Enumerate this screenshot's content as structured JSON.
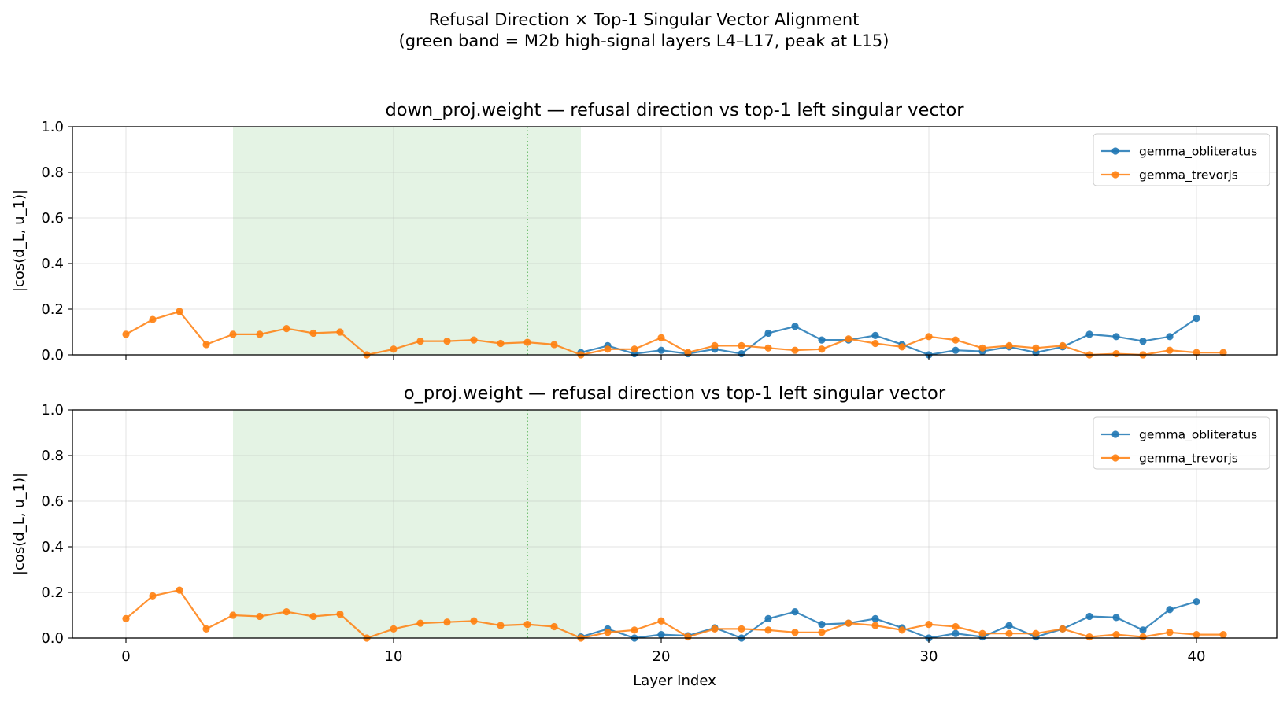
{
  "figure": {
    "suptitle_line1": "Refusal Direction × Top-1 Singular Vector Alignment",
    "suptitle_line2": "(green band = M2b high-signal layers L4–L17, peak at L15)",
    "xlabel": "Layer Index"
  },
  "colors": {
    "gemma_obliteratus": "#1f77b4",
    "gemma_trevorjs": "#ff7f0e",
    "band": "#2ca02c"
  },
  "chart_data": [
    {
      "type": "line",
      "title": "down_proj.weight  —  refusal direction vs top-1 left singular vector",
      "xlabel": "",
      "ylabel": "|cos(d_L, u_1)|",
      "xlim": [
        -2,
        43
      ],
      "ylim": [
        0,
        1
      ],
      "xticks": [
        0,
        10,
        20,
        30,
        40
      ],
      "yticks": [
        0.0,
        0.2,
        0.4,
        0.6,
        0.8,
        1.0
      ],
      "yticklabels": [
        "0.0",
        "0.2",
        "0.4",
        "0.6",
        "0.8",
        "1.0"
      ],
      "grid": true,
      "legend": "top-right",
      "show_xticklabels": false,
      "highlight_band": [
        4,
        17
      ],
      "highlight_line": 15,
      "series": [
        {
          "name": "gemma_obliteratus",
          "x": [
            17,
            18,
            19,
            20,
            21,
            22,
            23,
            24,
            25,
            26,
            27,
            28,
            29,
            30,
            31,
            32,
            33,
            34,
            35,
            36,
            37,
            38,
            39,
            40
          ],
          "y": [
            0.01,
            0.04,
            0.005,
            0.02,
            0.005,
            0.025,
            0.005,
            0.095,
            0.125,
            0.065,
            0.065,
            0.085,
            0.045,
            0.0,
            0.02,
            0.015,
            0.035,
            0.01,
            0.035,
            0.09,
            0.08,
            0.06,
            0.08,
            0.16
          ]
        },
        {
          "name": "gemma_trevorjs",
          "x": [
            0,
            1,
            2,
            3,
            4,
            5,
            6,
            7,
            8,
            9,
            10,
            11,
            12,
            13,
            14,
            15,
            16,
            17,
            18,
            19,
            20,
            21,
            22,
            23,
            24,
            25,
            26,
            27,
            28,
            29,
            30,
            31,
            32,
            33,
            34,
            35,
            36,
            37,
            38,
            39,
            40,
            41
          ],
          "y": [
            0.09,
            0.155,
            0.19,
            0.045,
            0.09,
            0.09,
            0.115,
            0.095,
            0.1,
            0.0,
            0.025,
            0.06,
            0.06,
            0.065,
            0.05,
            0.055,
            0.045,
            0.0,
            0.025,
            0.025,
            0.075,
            0.01,
            0.04,
            0.04,
            0.03,
            0.02,
            0.025,
            0.07,
            0.05,
            0.035,
            0.08,
            0.065,
            0.03,
            0.04,
            0.03,
            0.04,
            0.0,
            0.005,
            0.0,
            0.02,
            0.01,
            0.01
          ]
        }
      ]
    },
    {
      "type": "line",
      "title": "o_proj.weight  —  refusal direction vs top-1 left singular vector",
      "xlabel": "Layer Index",
      "ylabel": "|cos(d_L, u_1)|",
      "xlim": [
        -2,
        43
      ],
      "ylim": [
        0,
        1
      ],
      "xticks": [
        0,
        10,
        20,
        30,
        40
      ],
      "xticklabels": [
        "0",
        "10",
        "20",
        "30",
        "40"
      ],
      "yticks": [
        0.0,
        0.2,
        0.4,
        0.6,
        0.8,
        1.0
      ],
      "yticklabels": [
        "0.0",
        "0.2",
        "0.4",
        "0.6",
        "0.8",
        "1.0"
      ],
      "grid": true,
      "legend": "top-right",
      "show_xticklabels": true,
      "highlight_band": [
        4,
        17
      ],
      "highlight_line": 15,
      "series": [
        {
          "name": "gemma_obliteratus",
          "x": [
            17,
            18,
            19,
            20,
            21,
            22,
            23,
            24,
            25,
            26,
            27,
            28,
            29,
            30,
            31,
            32,
            33,
            34,
            35,
            36,
            37,
            38,
            39,
            40
          ],
          "y": [
            0.005,
            0.04,
            0.0,
            0.015,
            0.01,
            0.045,
            0.0,
            0.085,
            0.115,
            0.06,
            0.065,
            0.085,
            0.045,
            0.0,
            0.02,
            0.005,
            0.055,
            0.005,
            0.04,
            0.095,
            0.09,
            0.035,
            0.125,
            0.16
          ]
        },
        {
          "name": "gemma_trevorjs",
          "x": [
            0,
            1,
            2,
            3,
            4,
            5,
            6,
            7,
            8,
            9,
            10,
            11,
            12,
            13,
            14,
            15,
            16,
            17,
            18,
            19,
            20,
            21,
            22,
            23,
            24,
            25,
            26,
            27,
            28,
            29,
            30,
            31,
            32,
            33,
            34,
            35,
            36,
            37,
            38,
            39,
            40,
            41
          ],
          "y": [
            0.085,
            0.185,
            0.21,
            0.04,
            0.1,
            0.095,
            0.115,
            0.095,
            0.105,
            0.0,
            0.04,
            0.065,
            0.07,
            0.075,
            0.055,
            0.06,
            0.05,
            0.0,
            0.025,
            0.035,
            0.075,
            0.005,
            0.04,
            0.04,
            0.035,
            0.025,
            0.025,
            0.065,
            0.055,
            0.035,
            0.06,
            0.05,
            0.02,
            0.02,
            0.02,
            0.04,
            0.005,
            0.015,
            0.005,
            0.025,
            0.015,
            0.015
          ]
        }
      ]
    }
  ]
}
